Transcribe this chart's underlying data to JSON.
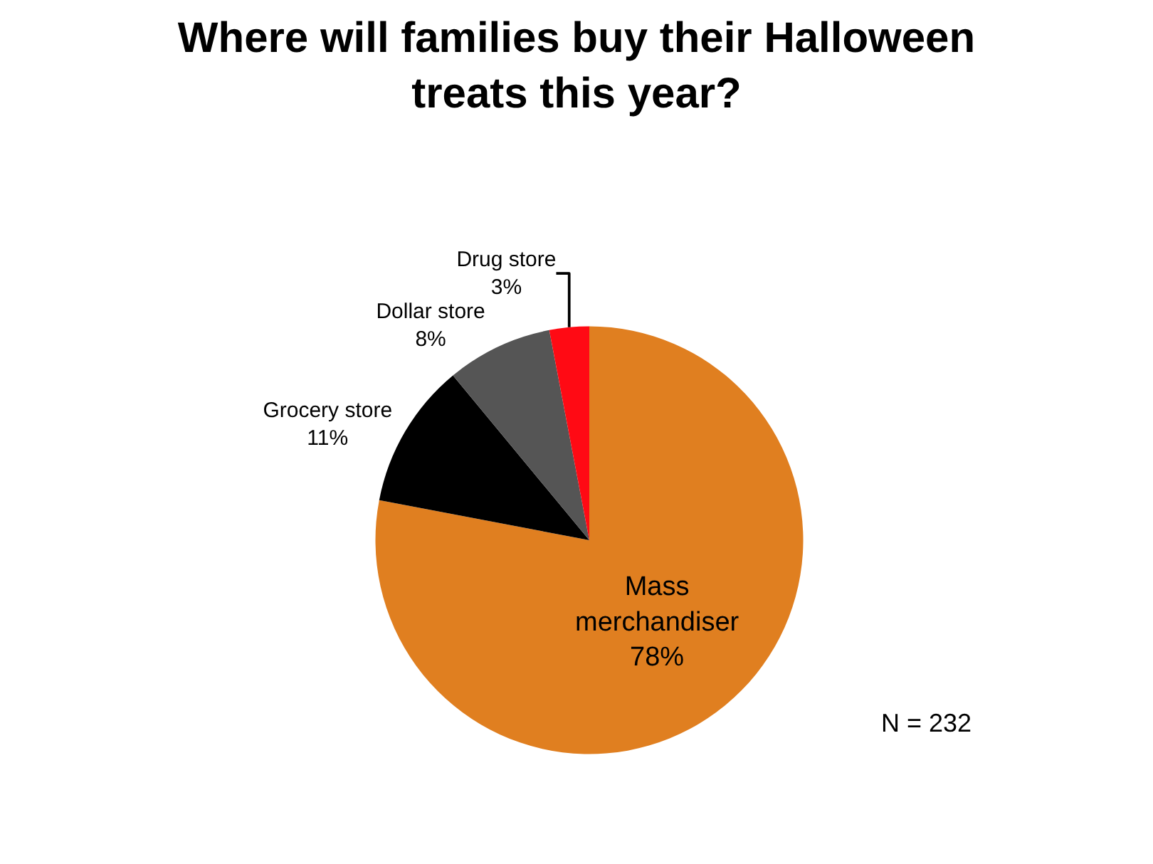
{
  "chart_data": {
    "type": "pie",
    "title": "Where will families buy their Halloween treats this year?",
    "categories": [
      "Mass merchandiser",
      "Grocery store",
      "Dollar store",
      "Drug store"
    ],
    "values": [
      78,
      11,
      8,
      3
    ],
    "colors": [
      "#e07f20",
      "#000000",
      "#555555",
      "#ff0a14"
    ],
    "value_labels": [
      "78%",
      "11%",
      "8%",
      "3%"
    ],
    "legend": false,
    "annotations": [
      "N = 232"
    ]
  }
}
